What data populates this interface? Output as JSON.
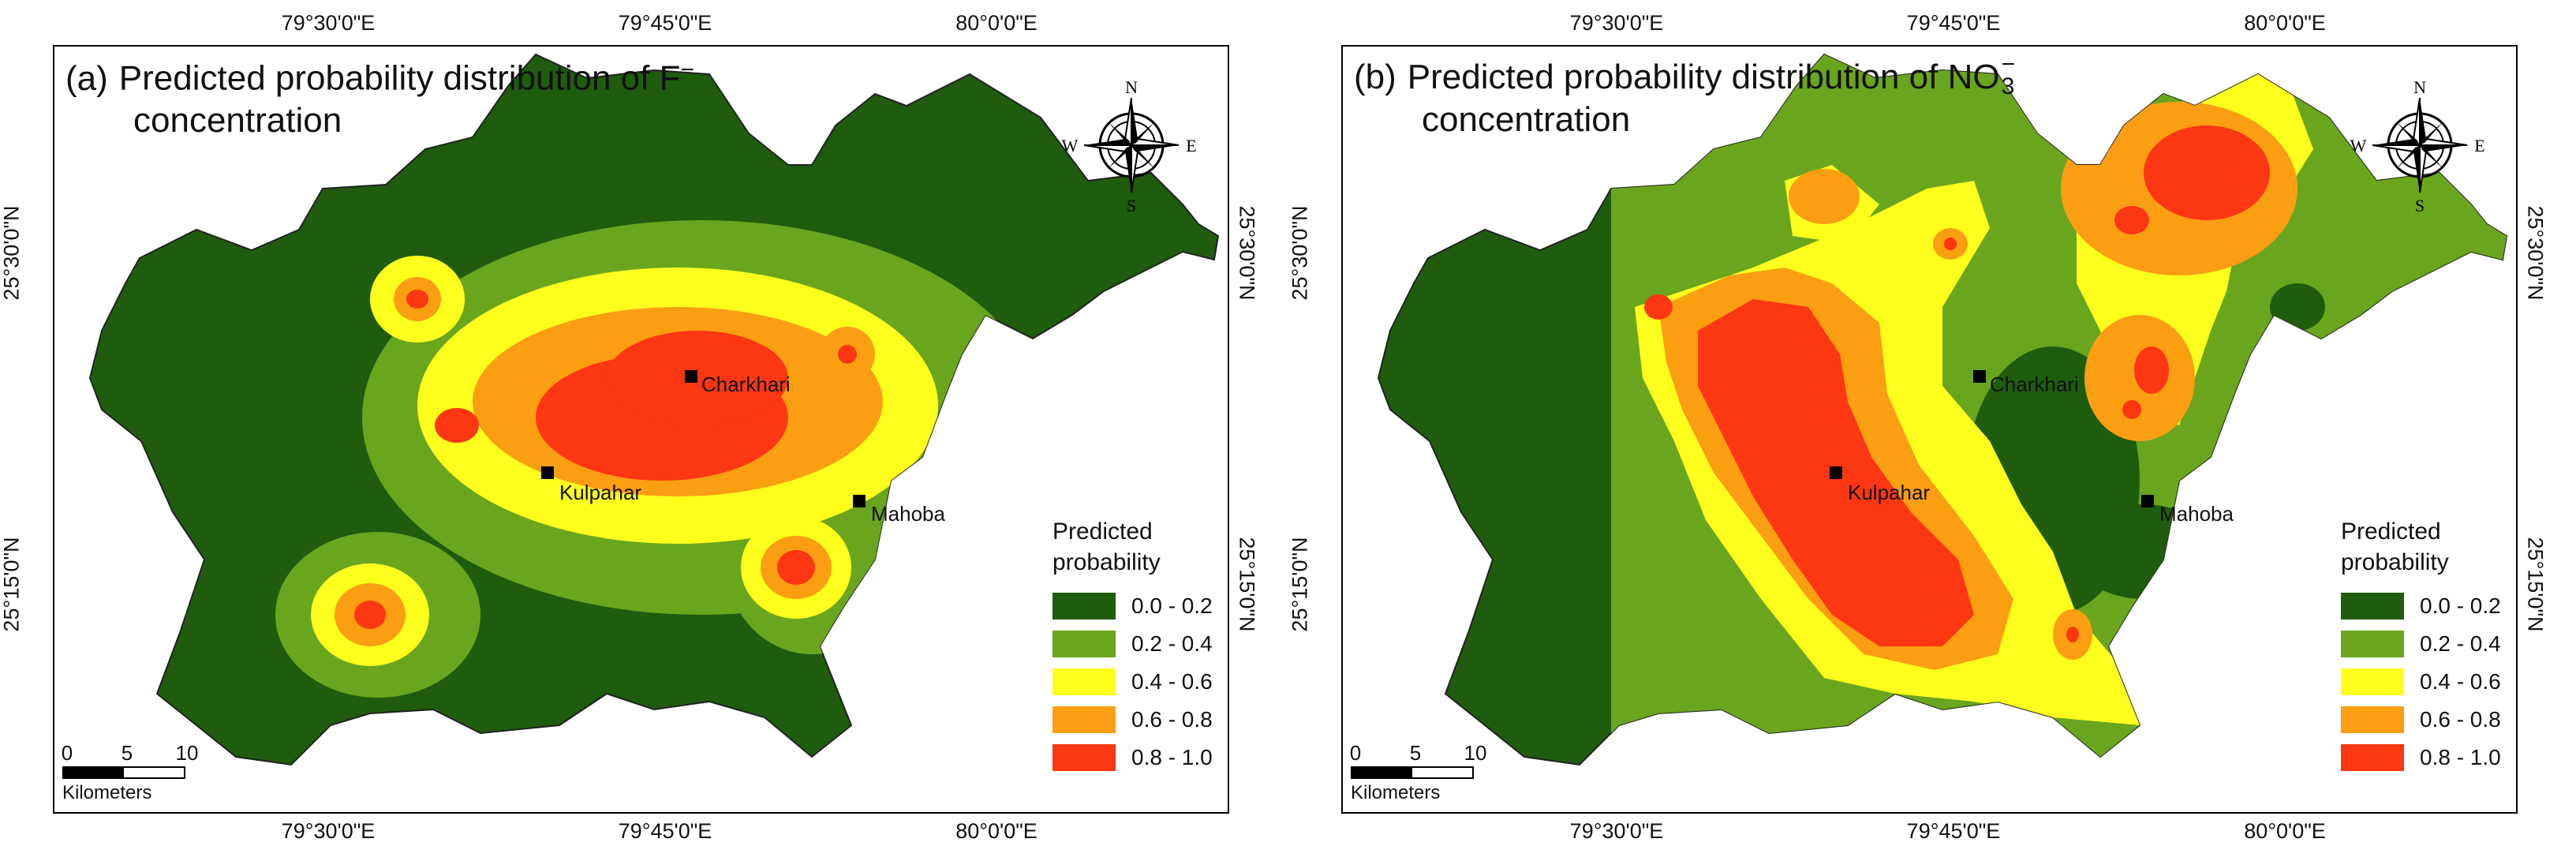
{
  "figure": {
    "panels": [
      {
        "label": "(a)",
        "title_line1": "Predicted probability distribution of F",
        "title_super": "−",
        "title_line2": "concentration"
      },
      {
        "label": "(b)",
        "title_line1": "Predicted probability distribution of NO",
        "title_sub": "3",
        "title_super": "−",
        "title_line2": "concentration"
      }
    ],
    "axes": {
      "longitude_ticks": [
        "79°30'0\"E",
        "79°45'0\"E",
        "80°0'0\"E"
      ],
      "latitude_ticks": [
        "25°30'0\"N",
        "25°15'0\"N"
      ]
    },
    "cities": [
      "Charkhari",
      "Kulpahar",
      "Mahoba"
    ],
    "legend": {
      "title_line1": "Predicted",
      "title_line2": "probability",
      "classes": [
        {
          "label": "0.0 - 0.2",
          "color": "#1f5c0e"
        },
        {
          "label": "0.2 - 0.4",
          "color": "#6aa51e"
        },
        {
          "label": "0.4 - 0.6",
          "color": "#ffff1e"
        },
        {
          "label": "0.6 - 0.8",
          "color": "#fb9e12"
        },
        {
          "label": "0.8 - 1.0",
          "color": "#fc3712"
        }
      ]
    },
    "scale_bar": {
      "ticks": [
        "0",
        "5",
        "10"
      ],
      "unit": "Kilometers"
    },
    "compass": {
      "n": "N",
      "s": "S",
      "e": "E",
      "w": "W"
    }
  }
}
